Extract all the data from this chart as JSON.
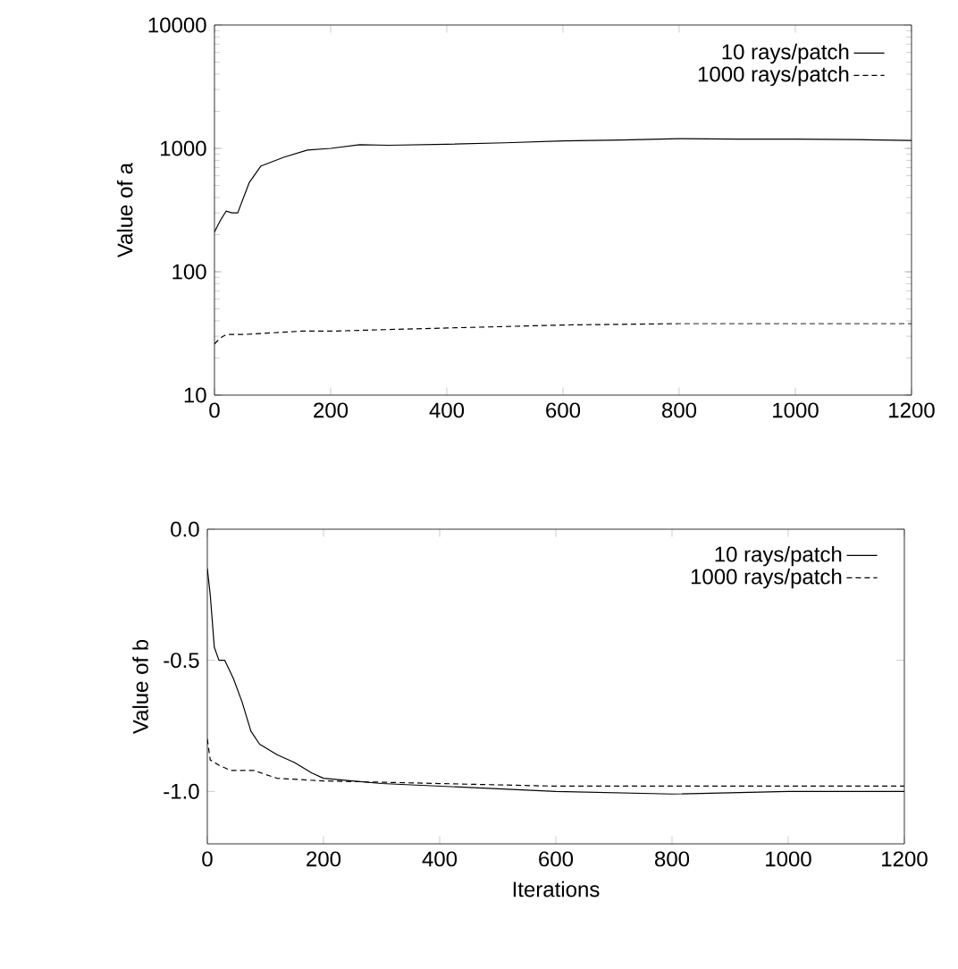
{
  "chart_data": [
    {
      "type": "line",
      "ylabel": "Value of a",
      "log": "y",
      "xlim": [
        0,
        1200
      ],
      "ylim": [
        10,
        10000
      ],
      "xticks": [
        0,
        200,
        400,
        600,
        800,
        1000,
        1200
      ],
      "yticks": [
        10,
        100,
        1000,
        10000
      ],
      "legend": "top right",
      "grid": false,
      "series": [
        {
          "name": "10 rays/patch",
          "color": "#000000",
          "line_style": "solid",
          "x": [
            0,
            10,
            20,
            30,
            40,
            60,
            80,
            120,
            160,
            200,
            250,
            300,
            400,
            500,
            600,
            700,
            800,
            900,
            1000,
            1100,
            1200
          ],
          "values": [
            210,
            260,
            310,
            300,
            300,
            530,
            720,
            850,
            970,
            1000,
            1070,
            1060,
            1080,
            1110,
            1150,
            1170,
            1200,
            1190,
            1190,
            1180,
            1160
          ]
        },
        {
          "name": "1000 rays/patch",
          "color": "#000000",
          "line_style": "dashed",
          "x": [
            0,
            10,
            20,
            50,
            100,
            150,
            200,
            300,
            400,
            600,
            800,
            1000,
            1200
          ],
          "values": [
            26,
            29,
            31,
            31,
            32,
            33,
            33,
            34,
            35,
            37,
            38,
            38,
            38
          ]
        }
      ]
    },
    {
      "type": "line",
      "ylabel": "Value of b",
      "xlabel": "Iterations",
      "xlim": [
        0,
        1200
      ],
      "ylim": [
        -1.2,
        0
      ],
      "xticks": [
        0,
        200,
        400,
        600,
        800,
        1000,
        1200
      ],
      "yticks": [
        {
          "value": -1,
          "label": "-1.0"
        },
        -0.5,
        {
          "value": 0,
          "label": "0.0"
        }
      ],
      "legend": "top right",
      "grid": false,
      "series": [
        {
          "name": "10 rays/patch",
          "color": "#000000",
          "line_style": "solid",
          "x": [
            0,
            5,
            12,
            20,
            30,
            45,
            60,
            75,
            90,
            120,
            150,
            180,
            200,
            250,
            300,
            400,
            600,
            800,
            1000,
            1200
          ],
          "values": [
            -0.15,
            -0.25,
            -0.45,
            -0.5,
            -0.5,
            -0.57,
            -0.66,
            -0.77,
            -0.82,
            -0.86,
            -0.89,
            -0.93,
            -0.95,
            -0.96,
            -0.97,
            -0.98,
            -1.0,
            -1.01,
            -1.0,
            -1.0
          ]
        },
        {
          "name": "1000 rays/patch",
          "color": "#000000",
          "line_style": "dashed",
          "x": [
            0,
            5,
            20,
            40,
            80,
            120,
            200,
            400,
            600,
            1200
          ],
          "values": [
            -0.8,
            -0.88,
            -0.9,
            -0.92,
            -0.92,
            -0.95,
            -0.96,
            -0.97,
            -0.98,
            -0.98
          ]
        }
      ]
    }
  ]
}
